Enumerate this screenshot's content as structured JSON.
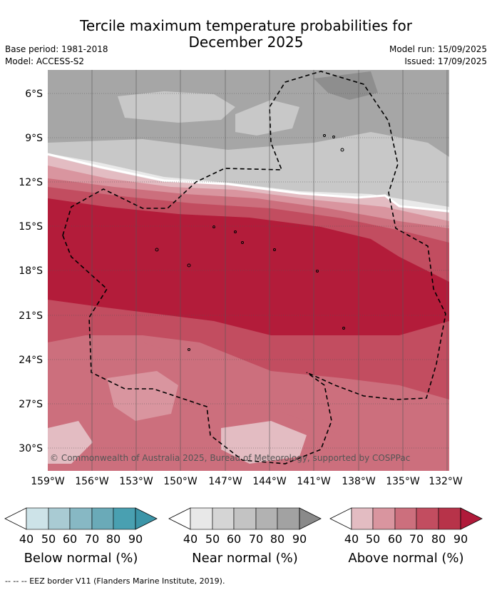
{
  "header": {
    "title_line1": "Tercile maximum temperature probabilities for",
    "title_line2": "December 2025",
    "base_period": "Base period: 1981-2018",
    "model": "Model: ACCESS-S2",
    "model_run": "Model run: 15/09/2025",
    "issued": "Issued: 17/09/2025"
  },
  "map": {
    "lat_labels": [
      "6°S",
      "9°S",
      "12°S",
      "15°S",
      "18°S",
      "21°S",
      "24°S",
      "27°S",
      "30°S"
    ],
    "lon_labels": [
      "159°W",
      "156°W",
      "153°W",
      "150°W",
      "147°W",
      "144°W",
      "141°W",
      "138°W",
      "135°W",
      "132°W"
    ],
    "copyright": "© Commonwealth of Australia 2025, Bureau of Meteorology, supported by COSPPac",
    "colors": {
      "near_light": "#e9e9e9",
      "near_mid": "#c8c8c8",
      "near_dark": "#a6a6a6",
      "near_darkest": "#8e8e8e",
      "above_40": "#e3bcc2",
      "above_50": "#d9959f",
      "above_60": "#cc6f7d",
      "above_70": "#c24d60",
      "above_80": "#b31c3a"
    }
  },
  "legends": {
    "tick_values": [
      "40",
      "50",
      "60",
      "70",
      "80",
      "90"
    ],
    "below": {
      "label": "Below normal (%)",
      "colors": [
        "#cde3e8",
        "#a9cbd3",
        "#87b8c4",
        "#6aaab8",
        "#49a0b1",
        "#3c95a8"
      ]
    },
    "near": {
      "label": "Near normal (%)",
      "colors": [
        "#e8e8e8",
        "#d5d5d5",
        "#c3c3c3",
        "#b2b2b2",
        "#a2a2a2",
        "#8a8a8a"
      ]
    },
    "above": {
      "label": "Above normal (%)",
      "colors": [
        "#e3bcc2",
        "#d9959f",
        "#cc6f7d",
        "#c24d60",
        "#b73349",
        "#b01a3a"
      ]
    }
  },
  "footer": "--  --  -- EEZ border V11 (Flanders Marine Institute, 2019)."
}
